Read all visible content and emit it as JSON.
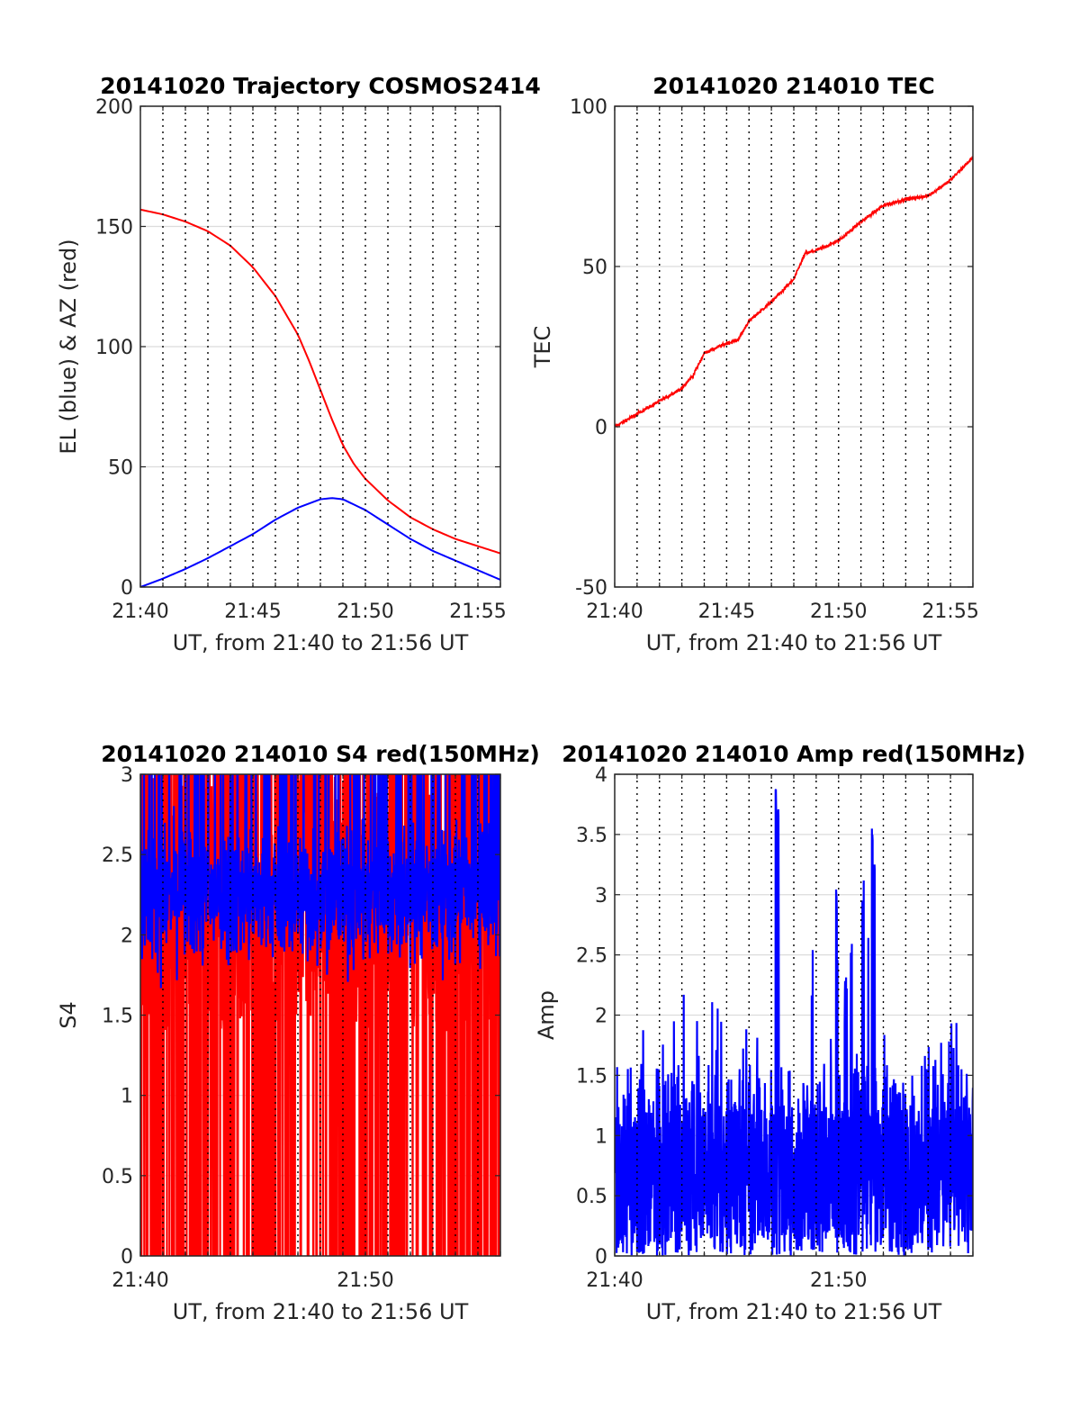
{
  "chart_data": [
    {
      "type": "line",
      "title": "20141020 Trajectory COSMOS2414",
      "xlabel": "UT, from 21:40 to 21:56 UT",
      "ylabel": "EL (blue) & AZ (red)",
      "xlim": [
        0,
        16
      ],
      "ylim": [
        0,
        200
      ],
      "xticks": [
        0,
        5,
        10,
        15
      ],
      "xtick_labels": [
        "21:40",
        "21:45",
        "21:50",
        "21:55"
      ],
      "yticks": [
        0,
        50,
        100,
        150,
        200
      ],
      "ytick_labels": [
        "0",
        "50",
        "100",
        "150",
        "200"
      ],
      "series": [
        {
          "color": "#ff0000",
          "x": [
            0,
            1,
            2,
            3,
            4,
            5,
            6,
            7,
            7.5,
            8,
            8.5,
            9,
            9.5,
            10,
            11,
            12,
            13,
            14,
            15,
            16
          ],
          "values": [
            157,
            155,
            152,
            148,
            142,
            133,
            121,
            105,
            94,
            82,
            70,
            59,
            51,
            45,
            36,
            29,
            24,
            20,
            17,
            14
          ]
        },
        {
          "color": "#0000ff",
          "x": [
            0,
            1,
            2,
            3,
            4,
            5,
            6,
            7,
            8,
            8.5,
            9,
            10,
            11,
            12,
            13,
            14,
            15,
            16
          ],
          "values": [
            0,
            3.5,
            7.5,
            12,
            17,
            22,
            28,
            33,
            36.5,
            37,
            36.5,
            32,
            26,
            20,
            15,
            11,
            7,
            3
          ]
        }
      ],
      "grid": true
    },
    {
      "type": "line",
      "title": "20141020 214010 TEC",
      "xlabel": "UT, from 21:40 to 21:56 UT",
      "ylabel": "TEC",
      "xlim": [
        0,
        16
      ],
      "ylim": [
        -50,
        100
      ],
      "xticks": [
        0,
        5,
        10,
        15
      ],
      "xtick_labels": [
        "21:40",
        "21:45",
        "21:50",
        "21:55"
      ],
      "yticks": [
        -50,
        0,
        50,
        100
      ],
      "ytick_labels": [
        "-50",
        "0",
        "50",
        "100"
      ],
      "series": [
        {
          "color": "#ff0000",
          "x": [
            0,
            1,
            2,
            3,
            3.5,
            4,
            5,
            5.5,
            6,
            7,
            8,
            8.5,
            9,
            10,
            11,
            12,
            13,
            14,
            15,
            16
          ],
          "values": [
            0,
            4,
            8,
            12,
            16,
            23,
            26,
            27,
            33,
            39,
            46,
            54,
            55,
            58,
            64,
            69,
            71,
            72,
            77,
            84
          ]
        }
      ],
      "grid": true
    },
    {
      "type": "line",
      "title": "20141020 214010 S4 red(150MHz)",
      "xlabel": "UT, from 21:40 to 21:56 UT",
      "ylabel": "S4",
      "xlim": [
        0,
        16
      ],
      "ylim": [
        0,
        3
      ],
      "xticks": [
        0,
        10
      ],
      "xtick_labels": [
        "21:40",
        "21:50"
      ],
      "yticks": [
        0,
        0.5,
        1,
        1.5,
        2,
        2.5,
        3
      ],
      "ytick_labels": [
        "0",
        "0.5",
        "1",
        "1.5",
        "2",
        "2.5",
        "3"
      ],
      "series": [
        {
          "color": "#ff0000",
          "x": [
            0,
            16
          ],
          "values": [
            2.0,
            2.0
          ],
          "range": [
            0,
            3
          ]
        },
        {
          "color": "#0000ff",
          "x": [
            0,
            16
          ],
          "values": [
            2.2,
            2.2
          ],
          "range": [
            0.8,
            3
          ]
        }
      ],
      "grid": true
    },
    {
      "type": "line",
      "title": "20141020 214010 Amp red(150MHz)",
      "xlabel": "UT, from 21:40 to 21:56 UT",
      "ylabel": "Amp",
      "xlim": [
        0,
        16
      ],
      "ylim": [
        0,
        4
      ],
      "xticks": [
        0,
        10
      ],
      "xtick_labels": [
        "21:40",
        "21:50"
      ],
      "yticks": [
        0,
        0.5,
        1,
        1.5,
        2,
        2.5,
        3,
        3.5,
        4
      ],
      "ytick_labels": [
        "0",
        "0.5",
        "1",
        "1.5",
        "2",
        "2.5",
        "3",
        "3.5",
        "4"
      ],
      "series": [
        {
          "color": "#0000ff",
          "x": [
            0,
            1,
            3.2,
            6,
            7.2,
            7.3,
            9.9,
            10.3,
            11.5,
            11.6,
            12.5,
            14.2,
            15.2,
            15.5,
            16
          ],
          "values": [
            1.1,
            1.9,
            2.2,
            2.0,
            3.9,
            3.8,
            3.05,
            2.35,
            3.55,
            3.3,
            1.75,
            1.75,
            2.0,
            1.9,
            1.2
          ]
        }
      ],
      "grid": true
    }
  ]
}
